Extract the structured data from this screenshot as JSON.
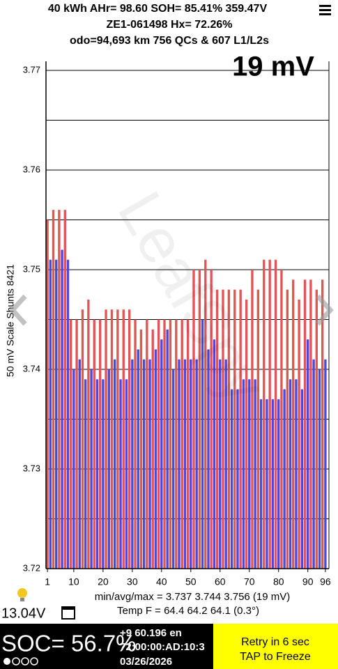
{
  "header": {
    "line1": "40 kWh  AHr= 98.60 SOH= 85.41% 359.47V",
    "line2": "ZE1-061498   Hx= 72.26%",
    "line3": "odo=94,693 km 756 QCs & 607 L1/L2s"
  },
  "chart_data": {
    "type": "bar",
    "title": "19 mV",
    "y_label": "50 mV Scale   Shunts 8421",
    "watermark": "LeafSpy",
    "x": [
      1,
      2,
      3,
      4,
      5,
      6,
      7,
      8,
      9,
      10,
      11,
      12,
      13,
      14,
      15,
      16,
      17,
      18,
      19,
      20,
      21,
      22,
      23,
      24,
      25,
      26,
      27,
      28,
      29,
      30,
      31,
      32,
      33,
      34,
      35,
      36,
      37,
      38,
      39,
      40,
      41,
      42,
      43,
      44,
      45,
      46,
      47,
      48,
      49,
      50,
      51,
      52,
      53,
      54,
      55,
      56,
      57,
      58,
      59,
      60,
      61,
      62,
      63,
      64,
      65,
      66,
      67,
      68,
      69,
      70,
      71,
      72,
      73,
      74,
      75,
      76,
      77,
      78,
      79,
      80,
      81,
      82,
      83,
      84,
      85,
      86,
      87,
      88,
      89,
      90,
      91,
      92,
      93,
      94,
      95,
      96
    ],
    "values": [
      3.755,
      3.751,
      3.756,
      3.751,
      3.756,
      3.752,
      3.756,
      3.751,
      3.745,
      3.74,
      3.745,
      3.741,
      3.746,
      3.739,
      3.747,
      3.74,
      3.745,
      3.739,
      3.745,
      3.739,
      3.746,
      3.74,
      3.746,
      3.741,
      3.746,
      3.739,
      3.746,
      3.739,
      3.746,
      3.741,
      3.745,
      3.742,
      3.744,
      3.741,
      3.745,
      3.741,
      3.744,
      3.742,
      3.745,
      3.743,
      3.745,
      3.744,
      3.745,
      3.74,
      3.745,
      3.741,
      3.745,
      3.741,
      3.745,
      3.741,
      3.75,
      3.741,
      3.75,
      3.745,
      3.751,
      3.742,
      3.75,
      3.743,
      3.748,
      3.741,
      3.748,
      3.741,
      3.748,
      3.738,
      3.748,
      3.738,
      3.748,
      3.739,
      3.747,
      3.739,
      3.75,
      3.739,
      3.748,
      3.737,
      3.751,
      3.737,
      3.751,
      3.737,
      3.751,
      3.737,
      3.75,
      3.738,
      3.748,
      3.739,
      3.749,
      3.739,
      3.747,
      3.738,
      3.749,
      3.743,
      3.749,
      3.741,
      3.748,
      3.74,
      3.749,
      3.741
    ],
    "bar_colors": [
      "#e05555",
      "#4b48dd"
    ],
    "xlim": [
      0.5,
      96.5
    ],
    "xticks": [
      1,
      10,
      20,
      30,
      40,
      50,
      60,
      70,
      80,
      90,
      96
    ],
    "ylim": [
      3.72,
      3.77
    ],
    "yticks": [
      3.72,
      3.73,
      3.74,
      3.75,
      3.76,
      3.77
    ],
    "minor_yticks": [
      3.725,
      3.735,
      3.745,
      3.755,
      3.765
    ],
    "grid": true
  },
  "footer": {
    "stats": "min/avg/max = 3.737 3.744 3.756  (19 mV)",
    "aux_voltage": "13.04V",
    "temp": "Temp F = 64.4  64.2  64.1  (0.3°)",
    "soc": "SOC= 56.7%",
    "info1": "+9 60.196 en",
    "info2": "72:00:00:AD:10:3",
    "date": "03/26/2026",
    "retry": "Retry in 6 sec",
    "tap": "TAP to Freeze"
  }
}
